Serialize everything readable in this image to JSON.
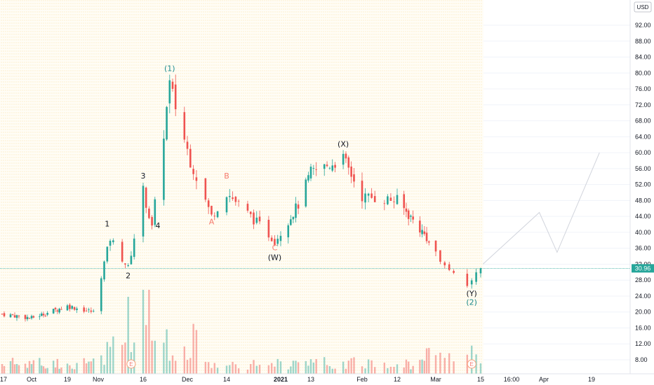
{
  "chart_data": {
    "type": "candlestick",
    "currency_badge": "USD",
    "last_price": "30.96",
    "y_ticks": [
      "92.00",
      "88.00",
      "84.00",
      "80.00",
      "76.00",
      "72.00",
      "68.00",
      "64.00",
      "60.00",
      "56.00",
      "52.00",
      "48.00",
      "44.00",
      "40.00",
      "36.00",
      "32.00",
      "28.00",
      "24.00",
      "20.00",
      "16.00",
      "12.00",
      "8.00"
    ],
    "x_ticks": [
      "17",
      "Oct",
      "19",
      "Nov",
      "16",
      "Dec",
      "14",
      "2021",
      "13",
      "Feb",
      "12",
      "Mar",
      "15",
      "16:00",
      "Apr",
      "19"
    ],
    "earnings_markers": [
      "E",
      "E"
    ],
    "wave_labels": [
      {
        "text": "(1)",
        "level": "cycle"
      },
      {
        "text": "1",
        "level": "major"
      },
      {
        "text": "2",
        "level": "major"
      },
      {
        "text": "3",
        "level": "major"
      },
      {
        "text": "4",
        "level": "major"
      },
      {
        "text": "A",
        "level": "minor"
      },
      {
        "text": "B",
        "level": "minor"
      },
      {
        "text": "C",
        "level": "minor"
      },
      {
        "text": "(W)",
        "level": "major"
      },
      {
        "text": "(X)",
        "level": "major"
      },
      {
        "text": "(Y)",
        "level": "major"
      },
      {
        "text": "(2)",
        "level": "cycle"
      }
    ],
    "price_path_approx": [
      {
        "date": "2020-09-17",
        "close": 19.5
      },
      {
        "date": "2020-10-01",
        "close": 18.5
      },
      {
        "date": "2020-10-19",
        "close": 21.5
      },
      {
        "date": "2020-10-30",
        "close": 20.0
      },
      {
        "date": "2020-11-05",
        "close": 38.5
      },
      {
        "date": "2020-11-11",
        "close": 31.0
      },
      {
        "date": "2020-11-16",
        "close": 50.5
      },
      {
        "date": "2020-11-19",
        "close": 41.0
      },
      {
        "date": "2020-11-25",
        "close": 77.0
      },
      {
        "date": "2020-12-02",
        "close": 58.0
      },
      {
        "date": "2020-12-09",
        "close": 44.0
      },
      {
        "date": "2020-12-14",
        "close": 50.0
      },
      {
        "date": "2020-12-30",
        "close": 38.0
      },
      {
        "date": "2021-01-08",
        "close": 47.0
      },
      {
        "date": "2021-01-13",
        "close": 55.0
      },
      {
        "date": "2021-01-25",
        "close": 58.5
      },
      {
        "date": "2021-02-01",
        "close": 49.0
      },
      {
        "date": "2021-02-12",
        "close": 48.0
      },
      {
        "date": "2021-02-26",
        "close": 38.0
      },
      {
        "date": "2021-03-08",
        "close": 27.0
      },
      {
        "date": "2021-03-11",
        "close": 30.96
      }
    ],
    "projection_path_approx": [
      {
        "date": "2021-03-12",
        "close": 32.0
      },
      {
        "date": "2021-04-06",
        "close": 45.0
      },
      {
        "date": "2021-04-13",
        "close": 35.0
      },
      {
        "date": "2021-04-29",
        "close": 60.0
      }
    ],
    "grid": true
  }
}
